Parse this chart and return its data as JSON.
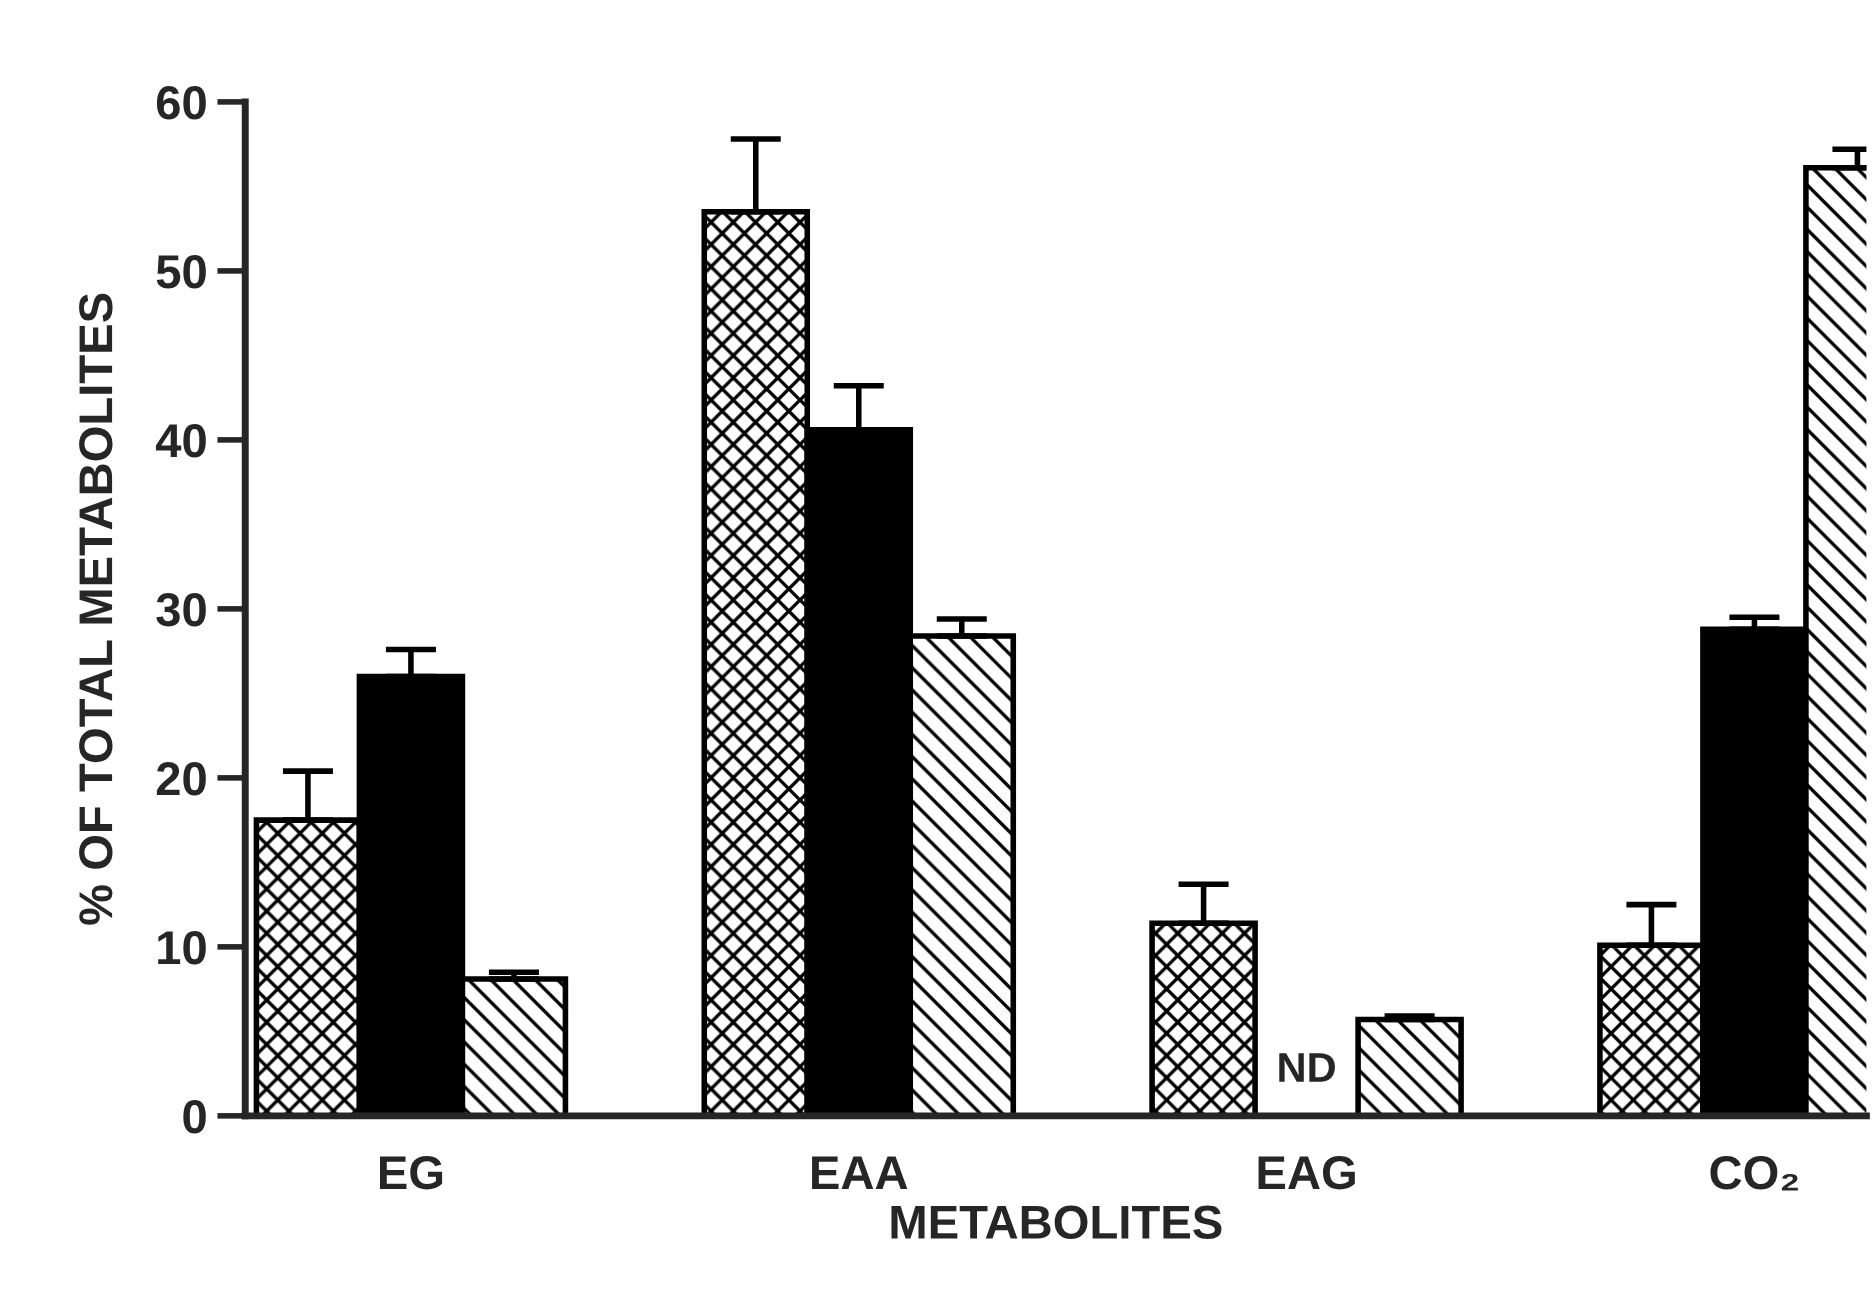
{
  "chart_data": {
    "type": "bar",
    "xlabel": "METABOLITES",
    "ylabel": "% OF TOTAL METABOLITES",
    "categories": [
      "EG",
      "EAA",
      "EAG",
      "CO₂"
    ],
    "series": [
      {
        "color": "#000000",
        "values": [
          17.5,
          53.5,
          11.4,
          10.1
        ],
        "errors": [
          [
            17.5,
            20.4
          ],
          [
            53.5,
            57.8
          ],
          [
            11.4,
            13.7
          ],
          [
            10.1,
            12.5
          ]
        ]
      },
      {
        "color": "#000000",
        "values": [
          26.0,
          40.6,
          null,
          28.8
        ],
        "errors": [
          [
            26.0,
            27.6
          ],
          [
            40.6,
            43.2
          ],
          null,
          [
            28.8,
            29.5
          ]
        ]
      },
      {
        "color": "#000000",
        "values": [
          8.1,
          28.4,
          5.7,
          56.1
        ],
        "errors": [
          [
            8.1,
            8.5
          ],
          [
            28.4,
            29.4
          ],
          [
            5.7,
            5.9
          ],
          [
            56.1,
            57.2
          ]
        ]
      }
    ],
    "annotations": [
      "ND"
    ],
    "ylim": [
      0,
      60
    ],
    "yticks": [
      0,
      10,
      20,
      30,
      40,
      50,
      60
    ],
    "grid": false,
    "legend": false
  }
}
